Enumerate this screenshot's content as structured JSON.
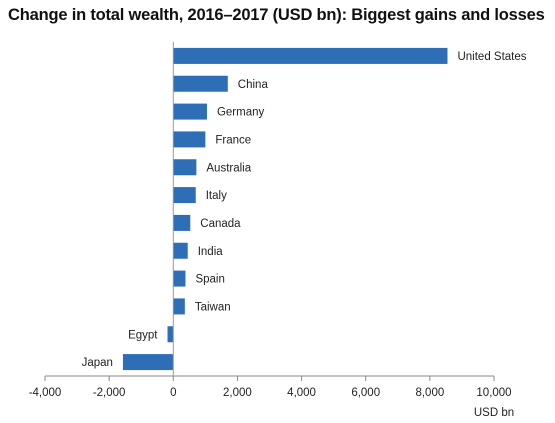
{
  "chart_data": {
    "type": "bar",
    "orientation": "horizontal",
    "title": "Change in total wealth, 2016–2017 (USD bn): Biggest gains and losses",
    "xlabel": "USD bn",
    "ylabel": "",
    "xlim": [
      -4000,
      10000
    ],
    "xticks": [
      -4000,
      -2000,
      0,
      2000,
      4000,
      6000,
      8000,
      10000
    ],
    "xtick_labels": [
      "-4,000",
      "-2,000",
      "0",
      "2,000",
      "4,000",
      "6,000",
      "8,000",
      "10,000"
    ],
    "grid": false,
    "bar_color": "#2d6eb7",
    "categories": [
      "United States",
      "China",
      "Germany",
      "France",
      "Australia",
      "Italy",
      "Canada",
      "India",
      "Spain",
      "Taiwan",
      "Egypt",
      "Japan"
    ],
    "values": [
      8550,
      1700,
      1050,
      1000,
      720,
      700,
      530,
      450,
      380,
      360,
      -180,
      -1570
    ]
  }
}
